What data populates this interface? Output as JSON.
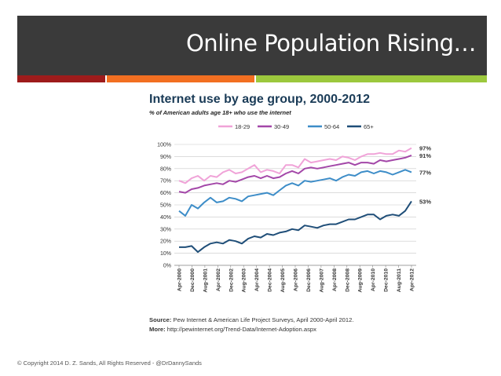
{
  "slide": {
    "title": "Online Population Rising…",
    "copyright": "© Copyright 2014 D. Z. Sands, All Rights Reserved - @DrDannySands"
  },
  "colors": {
    "title_bar": "#3a3a3a",
    "stripe_red": "#9e1b1b",
    "stripe_orange": "#f26f21",
    "stripe_green": "#9cc83d"
  },
  "source": {
    "source_label": "Source:",
    "source_text": "Pew Internet & American Life Project Surveys, April 2000-April 2012.",
    "more_label": "More:",
    "more_text": "http://pewinternet.org/Trend-Data/Internet-Adoption.aspx"
  },
  "chart_data": {
    "type": "line",
    "title": "Internet use by age group, 2000-2012",
    "subtitle": "% of American adults age 18+ who use the internet",
    "legend_position": "top",
    "ylim": [
      0,
      100
    ],
    "y_ticks": [
      "0%",
      "10%",
      "20%",
      "30%",
      "40%",
      "50%",
      "60%",
      "70%",
      "80%",
      "90%",
      "100%"
    ],
    "x_ticks": [
      "Apr-2000",
      "Dec-2000",
      "Aug-2001",
      "Apr-2002",
      "Dec-2002",
      "Aug-2003",
      "Apr-2004",
      "Dec-2004",
      "Aug-2005",
      "Apr-2006",
      "Dec-2006",
      "Aug-2007",
      "Apr-2008",
      "Dec-2008",
      "Aug-2009",
      "Apr-2010",
      "Dec-2010",
      "Aug-2011",
      "Apr-2012"
    ],
    "grid": true,
    "series": [
      {
        "name": "18-29",
        "color": "#f0a3d8",
        "end_label": "97%",
        "values": [
          70,
          68,
          72,
          74,
          70,
          74,
          73,
          77,
          79,
          76,
          77,
          80,
          83,
          77,
          79,
          78,
          76,
          83,
          83,
          81,
          88,
          85,
          86,
          87,
          88,
          87,
          90,
          89,
          87,
          90,
          92,
          92,
          93,
          92,
          92,
          95,
          94,
          97
        ]
      },
      {
        "name": "30-49",
        "color": "#a347a8",
        "end_label": "91%",
        "values": [
          61,
          60,
          63,
          64,
          66,
          67,
          68,
          67,
          70,
          69,
          71,
          73,
          74,
          72,
          74,
          72,
          73,
          76,
          78,
          76,
          80,
          81,
          80,
          81,
          82,
          83,
          84,
          85,
          83,
          85,
          85,
          84,
          87,
          86,
          87,
          88,
          89,
          91
        ]
      },
      {
        "name": "50-64",
        "color": "#3d8dc8",
        "end_label": "77%",
        "values": [
          45,
          41,
          50,
          47,
          52,
          56,
          52,
          53,
          56,
          55,
          53,
          57,
          58,
          59,
          60,
          58,
          62,
          66,
          68,
          66,
          70,
          69,
          70,
          71,
          72,
          70,
          73,
          75,
          74,
          77,
          78,
          76,
          78,
          77,
          75,
          77,
          79,
          77
        ]
      },
      {
        "name": "65+",
        "color": "#1f4e78",
        "end_label": "53%",
        "values": [
          15,
          15,
          16,
          11,
          15,
          18,
          19,
          18,
          21,
          20,
          18,
          22,
          24,
          23,
          26,
          25,
          27,
          28,
          30,
          29,
          33,
          32,
          31,
          33,
          34,
          34,
          36,
          38,
          38,
          40,
          42,
          42,
          38,
          41,
          42,
          41,
          45,
          53
        ]
      }
    ]
  }
}
